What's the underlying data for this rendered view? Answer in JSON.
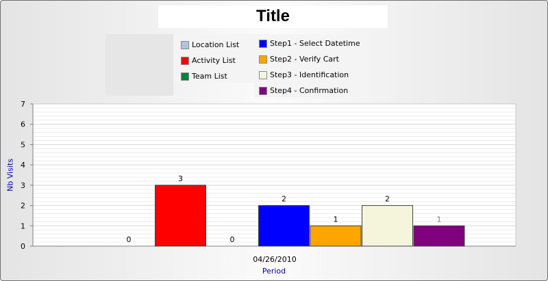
{
  "chart_data": {
    "type": "bar",
    "title": "Title",
    "xlabel": "Period",
    "ylabel": "Nb Visits",
    "ylim": [
      0,
      7
    ],
    "yticks": [
      "0",
      "1",
      "2",
      "3",
      "4",
      "5",
      "6",
      "7"
    ],
    "grid": true,
    "categories": [
      "04/26/2010"
    ],
    "series": [
      {
        "name": "Location List",
        "color": "#b0c4de",
        "values": [
          0
        ],
        "value_label": "0"
      },
      {
        "name": "Activity List",
        "color": "#ff0000",
        "values": [
          3
        ],
        "value_label": "3"
      },
      {
        "name": "Team List",
        "color": "#008040",
        "values": [
          0
        ],
        "value_label": "0"
      },
      {
        "name": "Step1 - Select Datetime",
        "color": "#0000ff",
        "values": [
          2
        ],
        "value_label": "2"
      },
      {
        "name": "Step2 - Verify Cart",
        "color": "#ffa500",
        "values": [
          1
        ],
        "value_label": "1"
      },
      {
        "name": "Step3 - Identification",
        "color": "#f5f5dc",
        "values": [
          2
        ],
        "value_label": "2"
      },
      {
        "name": "Step4 - Confirmation",
        "color": "#800080",
        "values": [
          1
        ],
        "value_label": "1"
      }
    ],
    "legend_placement": "top"
  }
}
